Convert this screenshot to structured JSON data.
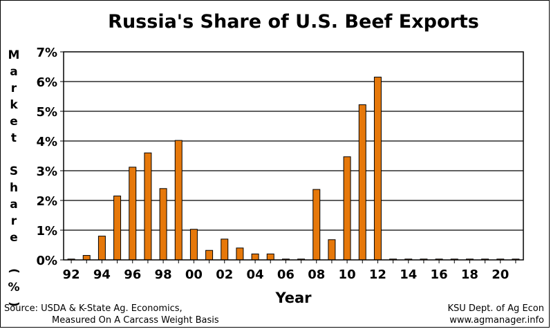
{
  "chart_data": {
    "type": "bar",
    "title": "Russia's Share of U.S. Beef Exports",
    "xlabel": "Year",
    "ylabel": "Market Share (%)",
    "ylim": [
      0,
      7
    ],
    "yticks": [
      "0%",
      "1%",
      "2%",
      "3%",
      "4%",
      "5%",
      "6%",
      "7%"
    ],
    "grid": true,
    "categories": [
      "92",
      "93",
      "94",
      "95",
      "96",
      "97",
      "98",
      "99",
      "00",
      "01",
      "02",
      "03",
      "04",
      "05",
      "06",
      "07",
      "08",
      "09",
      "10",
      "11",
      "12",
      "13",
      "14",
      "15",
      "16",
      "17",
      "18",
      "19",
      "20",
      "21"
    ],
    "xtick_labels": [
      "92",
      "94",
      "96",
      "98",
      "00",
      "02",
      "04",
      "06",
      "08",
      "10",
      "12",
      "14",
      "16",
      "18",
      "20"
    ],
    "values": [
      0.02,
      0.15,
      0.8,
      2.15,
      3.12,
      3.6,
      2.4,
      4.02,
      1.03,
      0.32,
      0.7,
      0.4,
      0.2,
      0.2,
      0,
      0,
      2.37,
      0.68,
      3.47,
      5.22,
      6.15,
      0,
      0,
      0,
      0,
      0,
      0,
      0,
      0,
      0
    ],
    "bar_color": "#E6780A",
    "bar_edge_color": "#000000"
  },
  "footer": {
    "source_line1": "Source:  USDA & K-State Ag. Economics,",
    "source_line2": "Measured On A Carcass Weight Basis",
    "credit_line1": "KSU Dept. of Ag Econ",
    "credit_line2": "www.agmanager.info"
  }
}
